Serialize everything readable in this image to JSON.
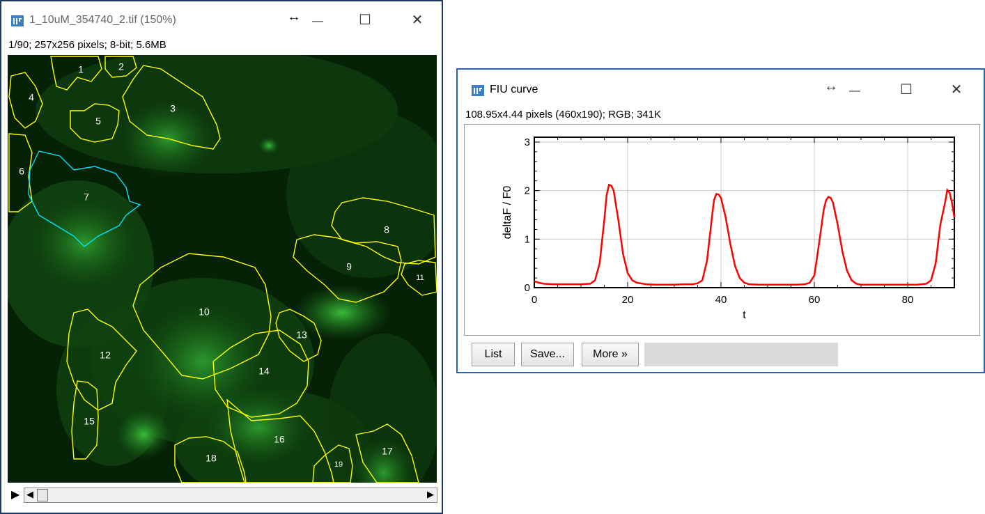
{
  "image_window": {
    "title": "1_10uM_354740_2.tif (150%)",
    "info": "1/90; 257x256 pixels; 8-bit; 5.6MB",
    "controls": {
      "resize": "↔",
      "minimize": "—",
      "maximize": "☐",
      "close": "✕"
    },
    "roi_labels": [
      "1",
      "2",
      "3",
      "4",
      "5",
      "6",
      "7",
      "8",
      "9",
      "10",
      "11",
      "12",
      "13",
      "14",
      "15",
      "16",
      "17",
      "18",
      "19"
    ],
    "colors": {
      "roi": "#ffff00",
      "selected_roi": "#00e5ff",
      "cells": "#1f8a1f",
      "background": "#062206"
    },
    "stack_controls": {
      "play": "▶",
      "left": "◀",
      "right": "▶"
    }
  },
  "plot_window": {
    "title": "FIU curve",
    "info": "108.95x4.44 pixels (460x190); RGB; 341K",
    "controls": {
      "resize": "↔",
      "minimize": "—",
      "maximize": "☐",
      "close": "✕"
    },
    "buttons": {
      "list": "List",
      "save": "Save...",
      "more": "More »"
    }
  },
  "chart_data": {
    "type": "line",
    "xlabel": "t",
    "ylabel": "deltaF / F0",
    "xlim": [
      0,
      90
    ],
    "ylim": [
      0,
      3.1
    ],
    "xticks": [
      "0",
      "20",
      "40",
      "60",
      "80"
    ],
    "yticks": [
      "0",
      "1",
      "2",
      "3"
    ],
    "grid": true,
    "line_color": "#ff0000",
    "series": [
      {
        "x": [
          0,
          1,
          2,
          4,
          6,
          8,
          10,
          12,
          13,
          14,
          15,
          15.5,
          16,
          16.5,
          17,
          18,
          19,
          20,
          21,
          22,
          24,
          26,
          28,
          30,
          32,
          34,
          35,
          36,
          37,
          38,
          38.5,
          39,
          39.5,
          40,
          41,
          42,
          43,
          44,
          45,
          46,
          48,
          50,
          52,
          54,
          56,
          58,
          59,
          60,
          61,
          62,
          62.5,
          63,
          63.5,
          64,
          65,
          66,
          67,
          68,
          69,
          70,
          72,
          74,
          76,
          78,
          80,
          82,
          84,
          85,
          86,
          87,
          88,
          88.5,
          89,
          89.5,
          90
        ],
        "y": [
          0.13,
          0.1,
          0.08,
          0.07,
          0.07,
          0.07,
          0.07,
          0.08,
          0.15,
          0.5,
          1.4,
          1.9,
          2.12,
          2.1,
          2.0,
          1.4,
          0.7,
          0.3,
          0.15,
          0.1,
          0.07,
          0.06,
          0.06,
          0.06,
          0.07,
          0.07,
          0.09,
          0.15,
          0.55,
          1.4,
          1.8,
          1.93,
          1.92,
          1.85,
          1.45,
          0.9,
          0.45,
          0.2,
          0.1,
          0.07,
          0.06,
          0.06,
          0.06,
          0.06,
          0.06,
          0.07,
          0.1,
          0.25,
          0.9,
          1.6,
          1.8,
          1.87,
          1.85,
          1.75,
          1.3,
          0.75,
          0.35,
          0.15,
          0.08,
          0.06,
          0.06,
          0.06,
          0.06,
          0.06,
          0.06,
          0.06,
          0.08,
          0.15,
          0.5,
          1.3,
          1.75,
          2.01,
          1.95,
          1.75,
          1.45
        ]
      }
    ]
  }
}
